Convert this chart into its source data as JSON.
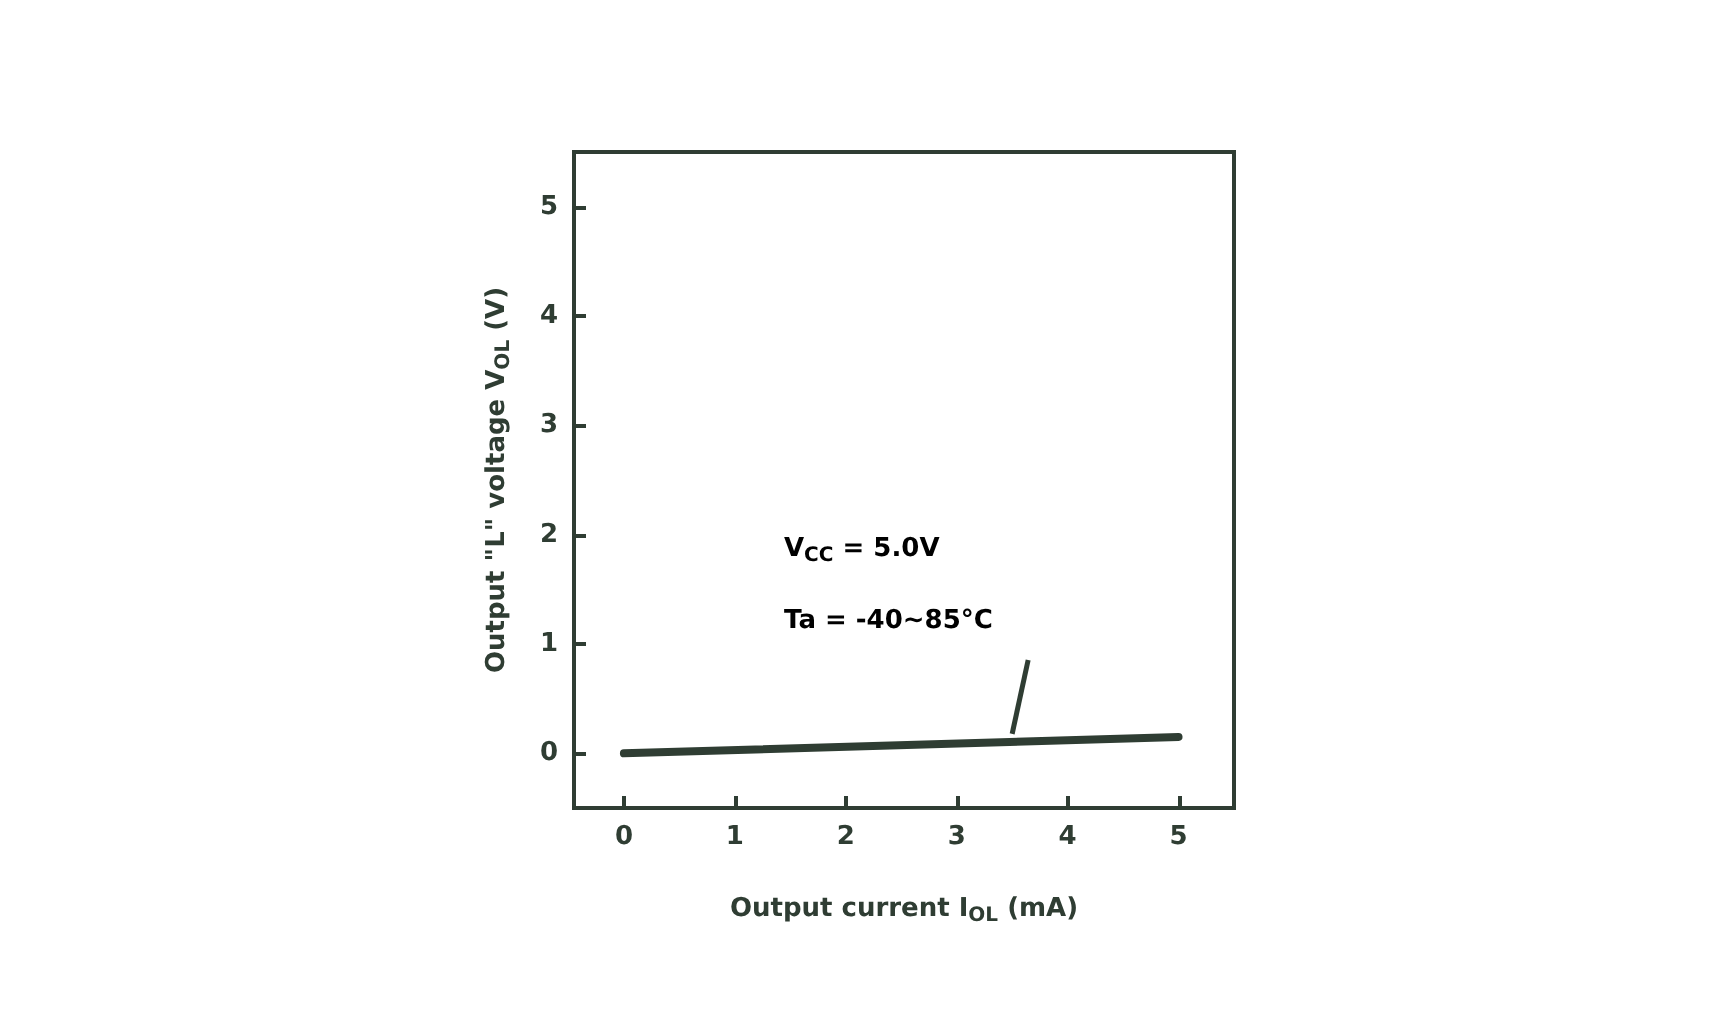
{
  "chart_data": {
    "type": "line",
    "xlabel": "Output current I$_{OL}$ (mA)",
    "ylabel": "Output \"L\" voltage V$_{OL}$ (V)",
    "x": [
      0,
      5
    ],
    "series": [
      {
        "color": "#2f3d33",
        "values": [
          0,
          0.15
        ]
      }
    ],
    "xlim": [
      -0.45,
      5.5
    ],
    "xticks": [
      0,
      1,
      2,
      3,
      4,
      5
    ],
    "ylim": [
      -0.5,
      5.5
    ],
    "yticks": [
      0,
      1,
      2,
      3,
      4,
      5
    ],
    "annotations": [
      "V$_{CC}$ = 5.0V",
      "Ta = -40~85°C"
    ],
    "grid": false,
    "marker": "none",
    "line_style": "solid"
  }
}
